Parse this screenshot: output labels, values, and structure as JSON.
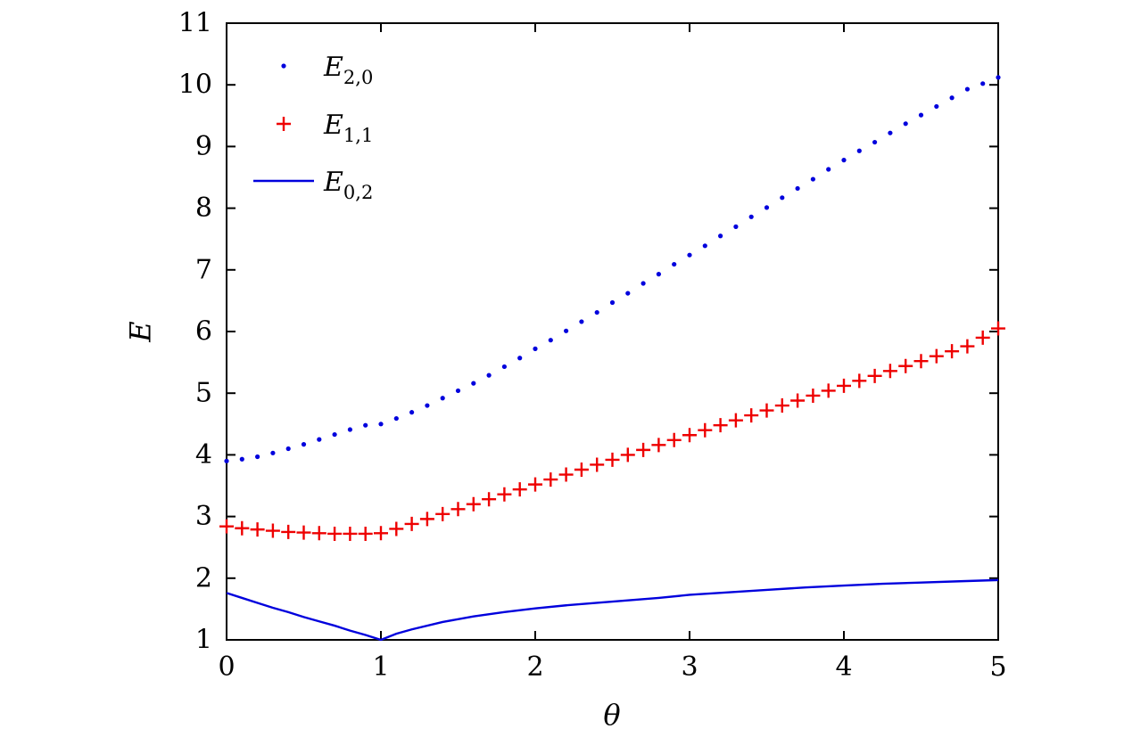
{
  "chart_data": {
    "type": "line",
    "title": "",
    "xlabel": "θ",
    "ylabel": "E",
    "xlim": [
      0,
      5
    ],
    "ylim": [
      1,
      11
    ],
    "xticks": [
      0,
      1,
      2,
      3,
      4,
      5
    ],
    "yticks": [
      1,
      2,
      3,
      4,
      5,
      6,
      7,
      8,
      9,
      10,
      11
    ],
    "grid": false,
    "legend_position": "top-left",
    "series": [
      {
        "name": "E",
        "subscript": "2,0",
        "style": "dots",
        "color": "#0000dd",
        "x": [
          0.0,
          0.1,
          0.2,
          0.3,
          0.4,
          0.5,
          0.6,
          0.7,
          0.8,
          0.9,
          1.0,
          1.1,
          1.2,
          1.3,
          1.4,
          1.5,
          1.6,
          1.7,
          1.8,
          1.9,
          2.0,
          2.1,
          2.2,
          2.3,
          2.4,
          2.5,
          2.6,
          2.7,
          2.8,
          2.9,
          3.0,
          3.1,
          3.2,
          3.3,
          3.4,
          3.5,
          3.6,
          3.7,
          3.8,
          3.9,
          4.0,
          4.1,
          4.2,
          4.3,
          4.4,
          4.5,
          4.6,
          4.7,
          4.8,
          4.9,
          5.0
        ],
        "y": [
          3.9,
          3.93,
          3.97,
          4.03,
          4.1,
          4.17,
          4.25,
          4.33,
          4.41,
          4.48,
          4.5,
          4.59,
          4.69,
          4.8,
          4.92,
          5.04,
          5.16,
          5.29,
          5.43,
          5.57,
          5.72,
          5.86,
          6.01,
          6.16,
          6.31,
          6.47,
          6.62,
          6.78,
          6.93,
          7.09,
          7.24,
          7.39,
          7.55,
          7.7,
          7.86,
          8.01,
          8.17,
          8.32,
          8.47,
          8.63,
          8.78,
          8.93,
          9.07,
          9.22,
          9.37,
          9.51,
          9.65,
          9.79,
          9.93,
          10.02,
          10.12
        ]
      },
      {
        "name": "E",
        "subscript": "1,1",
        "style": "plus",
        "color": "#ee0000",
        "x": [
          0.0,
          0.1,
          0.2,
          0.3,
          0.4,
          0.5,
          0.6,
          0.7,
          0.8,
          0.9,
          1.0,
          1.1,
          1.2,
          1.3,
          1.4,
          1.5,
          1.6,
          1.7,
          1.8,
          1.9,
          2.0,
          2.1,
          2.2,
          2.3,
          2.4,
          2.5,
          2.6,
          2.7,
          2.8,
          2.9,
          3.0,
          3.1,
          3.2,
          3.3,
          3.4,
          3.5,
          3.6,
          3.7,
          3.8,
          3.9,
          4.0,
          4.1,
          4.2,
          4.3,
          4.4,
          4.5,
          4.6,
          4.7,
          4.8,
          4.9,
          5.0
        ],
        "y": [
          2.84,
          2.81,
          2.79,
          2.77,
          2.75,
          2.74,
          2.73,
          2.72,
          2.72,
          2.72,
          2.73,
          2.8,
          2.88,
          2.96,
          3.04,
          3.12,
          3.2,
          3.28,
          3.36,
          3.44,
          3.52,
          3.6,
          3.68,
          3.76,
          3.84,
          3.92,
          4.0,
          4.08,
          4.16,
          4.24,
          4.32,
          4.4,
          4.48,
          4.56,
          4.64,
          4.72,
          4.8,
          4.88,
          4.96,
          5.04,
          5.12,
          5.2,
          5.28,
          5.36,
          5.44,
          5.52,
          5.6,
          5.68,
          5.76,
          5.9,
          6.05
        ]
      },
      {
        "name": "E",
        "subscript": "0,2",
        "style": "line",
        "color": "#0000dd",
        "x": [
          0.0,
          0.1,
          0.2,
          0.3,
          0.4,
          0.5,
          0.6,
          0.7,
          0.8,
          0.9,
          1.0,
          1.1,
          1.2,
          1.4,
          1.6,
          1.8,
          2.0,
          2.2,
          2.4,
          2.6,
          2.8,
          3.0,
          3.25,
          3.5,
          3.75,
          4.0,
          4.25,
          4.5,
          4.75,
          5.0
        ],
        "y": [
          1.76,
          1.68,
          1.6,
          1.52,
          1.45,
          1.37,
          1.3,
          1.23,
          1.15,
          1.08,
          1.0,
          1.1,
          1.17,
          1.29,
          1.38,
          1.45,
          1.51,
          1.56,
          1.6,
          1.64,
          1.68,
          1.73,
          1.77,
          1.81,
          1.85,
          1.88,
          1.91,
          1.93,
          1.95,
          1.97
        ]
      }
    ]
  }
}
